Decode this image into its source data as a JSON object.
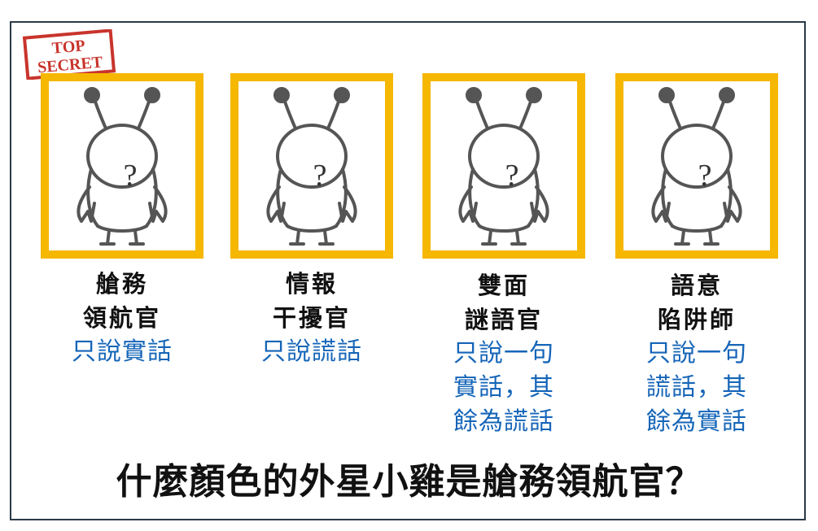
{
  "stamp": {
    "line1": "TOP",
    "line2": "SECRET"
  },
  "characters": [
    {
      "mark": "?",
      "role_line1": "艙務",
      "role_line2": "領航官",
      "rule_lines": [
        "只說實話"
      ]
    },
    {
      "mark": "?",
      "role_line1": "情報",
      "role_line2": "干擾官",
      "rule_lines": [
        "只說謊話"
      ]
    },
    {
      "mark": "?",
      "role_line1": "雙面",
      "role_line2": "謎語官",
      "rule_lines": [
        "只說一句",
        "實話，其",
        "餘為謊話"
      ]
    },
    {
      "mark": "?",
      "role_line1": "語意",
      "role_line2": "陷阱師",
      "rule_lines": [
        "只說一句",
        "謊話，其",
        "餘為實話"
      ]
    }
  ],
  "question": "什麼顏色的外星小雞是艙務領航官？",
  "colors": {
    "card_border": "#f5b700",
    "rule_text": "#1565b8",
    "stamp": "#c8342c",
    "outline": "#555555"
  }
}
